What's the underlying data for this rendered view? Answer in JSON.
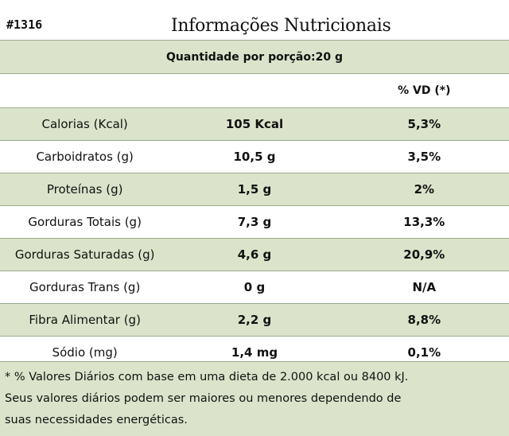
{
  "header": {
    "code": "#1316",
    "title": "Informações Nutricionais"
  },
  "portion": "Quantidade por porção:20 g",
  "vd_header": "% VD (*)",
  "rows": [
    {
      "nutrient": "Calorias (Kcal)",
      "amount": "105 Kcal",
      "vd": "5,3%"
    },
    {
      "nutrient": "Carboidratos (g)",
      "amount": "10,5 g",
      "vd": "3,5%"
    },
    {
      "nutrient": "Proteínas (g)",
      "amount": "1,5 g",
      "vd": "2%"
    },
    {
      "nutrient": "Gorduras Totais (g)",
      "amount": "7,3 g",
      "vd": "13,3%"
    },
    {
      "nutrient": "Gorduras Saturadas (g)",
      "amount": "4,6 g",
      "vd": "20,9%"
    },
    {
      "nutrient": "Gorduras Trans (g)",
      "amount": "0 g",
      "vd": "N/A"
    },
    {
      "nutrient": "Fibra Alimentar (g)",
      "amount": "2,2 g",
      "vd": "8,8%"
    },
    {
      "nutrient": "Sódio (mg)",
      "amount": "1,4 mg",
      "vd": "0,1%"
    }
  ],
  "footnote": {
    "line1": "* % Valores Diários com base em uma dieta de 2.000 kcal ou 8400 kJ.",
    "line2": "Seus valores diários podem ser maiores ou menores dependendo  de",
    "line3": "suas necessidades energéticas."
  }
}
